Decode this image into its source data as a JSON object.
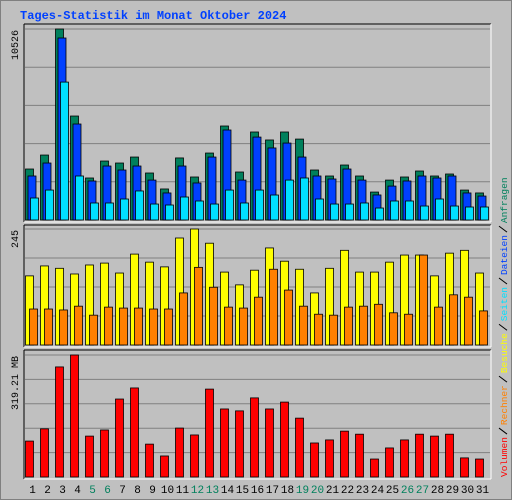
{
  "title": "Tages-Statistik im Monat Oktober 2024",
  "chart_data": [
    {
      "type": "bar",
      "ylim": [
        0,
        10526
      ],
      "yticks": [
        10526
      ],
      "grid_divisions": 5,
      "series": [
        {
          "name": "Anfragen",
          "color": "#00805c",
          "values": [
            2810,
            3580,
            10526,
            5730,
            2315,
            3250,
            3140,
            3470,
            2590,
            1710,
            3420,
            2370,
            3690,
            5180,
            2645,
            4850,
            4410,
            4850,
            4460,
            2755,
            2425,
            3030,
            2425,
            1540,
            2200,
            2370,
            2700,
            2425,
            2535,
            1650,
            1490
          ]
        },
        {
          "name": "Dateien",
          "color": "#0040ff",
          "values": [
            2425,
            3140,
            10030,
            5290,
            2150,
            2975,
            2755,
            2975,
            2200,
            1490,
            2975,
            2040,
            3470,
            4960,
            2200,
            4570,
            3970,
            4240,
            3470,
            2425,
            2260,
            2810,
            2200,
            1380,
            1870,
            2150,
            2425,
            2315,
            2425,
            1490,
            1320
          ]
        },
        {
          "name": "Seiten",
          "color": "#00e0ff",
          "values": [
            1212,
            1650,
            7600,
            2425,
            937,
            937,
            1157,
            1600,
            880,
            826,
            1267,
            1047,
            880,
            1650,
            937,
            1650,
            1377,
            2200,
            2315,
            1157,
            880,
            880,
            937,
            660,
            1047,
            1047,
            770,
            1157,
            770,
            716,
            716
          ]
        }
      ]
    },
    {
      "type": "bar",
      "ylim": [
        0,
        245
      ],
      "yticks": [
        245
      ],
      "grid_divisions": 4,
      "series": [
        {
          "name": "Besuche",
          "color": "#ffff00",
          "values": [
            146,
            167,
            162,
            150,
            169,
            173,
            152,
            192,
            175,
            165,
            226,
            245,
            215,
            154,
            127,
            158,
            205,
            177,
            160,
            110,
            162,
            200,
            154,
            154,
            175,
            190,
            190,
            146,
            194,
            200,
            152
          ]
        },
        {
          "name": "Rechner",
          "color": "#ff8000",
          "values": [
            76,
            76,
            74,
            82,
            63,
            80,
            78,
            78,
            76,
            76,
            110,
            164,
            122,
            80,
            78,
            101,
            160,
            116,
            82,
            65,
            63,
            80,
            82,
            86,
            68,
            65,
            190,
            80,
            106,
            101,
            72
          ]
        }
      ]
    },
    {
      "type": "bar",
      "ylim": [
        0,
        319.21
      ],
      "yticks": [
        {
          "value": 319.21,
          "label": "319.21 MB"
        }
      ],
      "grid_divisions": 5,
      "series": [
        {
          "name": "Volumen",
          "color": "#ff0000",
          "values": [
            94,
            126,
            288,
            319.21,
            107,
            123,
            204,
            233,
            86,
            55,
            128,
            110,
            230,
            178,
            173,
            207,
            178,
            196,
            154,
            89,
            97,
            120,
            112,
            47,
            76,
            97,
            112,
            107,
            112,
            50,
            47
          ]
        }
      ],
      "categories": [
        "1",
        "2",
        "3",
        "4",
        "5",
        "6",
        "7",
        "8",
        "9",
        "10",
        "11",
        "12",
        "13",
        "14",
        "15",
        "16",
        "17",
        "18",
        "19",
        "20",
        "21",
        "22",
        "23",
        "24",
        "25",
        "26",
        "27",
        "28",
        "29",
        "30",
        "31"
      ],
      "category_colors": [
        "#000000",
        "#000000",
        "#000000",
        "#000000",
        "#00805c",
        "#00805c",
        "#000000",
        "#000000",
        "#000000",
        "#000000",
        "#000000",
        "#00805c",
        "#00805c",
        "#000000",
        "#000000",
        "#000000",
        "#000000",
        "#000000",
        "#00805c",
        "#00805c",
        "#000000",
        "#000000",
        "#000000",
        "#000000",
        "#000000",
        "#00805c",
        "#00805c",
        "#000000",
        "#000000",
        "#000000",
        "#000000"
      ]
    }
  ]
}
